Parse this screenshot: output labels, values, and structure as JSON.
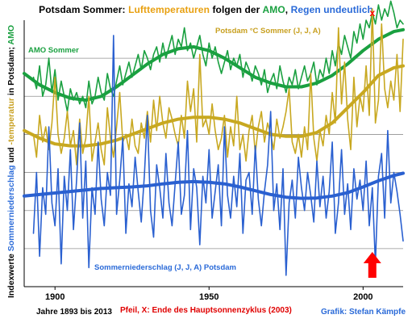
{
  "title_segments": [
    {
      "text": "Potsdam Sommer: ",
      "color": "#000000"
    },
    {
      "text": "Lufttemperaturen",
      "color": "#e8a010"
    },
    {
      "text": " folgen der ",
      "color": "#000000"
    },
    {
      "text": "AMO",
      "color": "#1aa040"
    },
    {
      "text": ", ",
      "color": "#000000"
    },
    {
      "text": "Regen undeutlich",
      "color": "#2a6ad8"
    }
  ],
  "ylabel_segments": [
    {
      "text": "Indexwerte ",
      "color": "#000000"
    },
    {
      "text": "Sommerniederschlag",
      "color": "#2a6ad8"
    },
    {
      "text": " und ",
      "color": "#000000"
    },
    {
      "text": "-temperatur",
      "color": "#c8a020"
    },
    {
      "text": " in Potsdam; ",
      "color": "#000000"
    },
    {
      "text": "AMO",
      "color": "#1aa040"
    }
  ],
  "footer": {
    "years": "Jahre 1893 bis 2013",
    "note": "Pfeil, X:  Ende  des Hauptsonnenzyklus  (2003)",
    "credit": "Grafik: Stefan Kämpfe"
  },
  "colors": {
    "amo": "#1aa040",
    "temperature": "#c8a820",
    "precipitation": "#2a60d0",
    "arrow": "#ff0000",
    "marker": "#ff0000",
    "note": "#e00000",
    "credit": "#2a6ad8",
    "grid": "#909090"
  },
  "chart_data": {
    "type": "line",
    "xlim": [
      1890,
      2013
    ],
    "ylim": [
      0,
      7
    ],
    "xticks": [
      1900,
      1950,
      2000
    ],
    "grid": true,
    "series": [
      {
        "name": "AMO Sommer",
        "style": "raw",
        "x": [
          1893,
          1894,
          1895,
          1896,
          1897,
          1898,
          1899,
          1900,
          1901,
          1902,
          1903,
          1904,
          1905,
          1906,
          1907,
          1908,
          1909,
          1910,
          1911,
          1912,
          1913,
          1914,
          1915,
          1916,
          1917,
          1918,
          1919,
          1920,
          1921,
          1922,
          1923,
          1924,
          1925,
          1926,
          1927,
          1928,
          1929,
          1930,
          1931,
          1932,
          1933,
          1934,
          1935,
          1936,
          1937,
          1938,
          1939,
          1940,
          1941,
          1942,
          1943,
          1944,
          1945,
          1946,
          1947,
          1948,
          1949,
          1950,
          1951,
          1952,
          1953,
          1954,
          1955,
          1956,
          1957,
          1958,
          1959,
          1960,
          1961,
          1962,
          1963,
          1964,
          1965,
          1966,
          1967,
          1968,
          1969,
          1970,
          1971,
          1972,
          1973,
          1974,
          1975,
          1976,
          1977,
          1978,
          1979,
          1980,
          1981,
          1982,
          1983,
          1984,
          1985,
          1986,
          1987,
          1988,
          1989,
          1990,
          1991,
          1992,
          1993,
          1994,
          1995,
          1996,
          1997,
          1998,
          1999,
          2000,
          2001,
          2002,
          2003,
          2004,
          2005,
          2006,
          2007,
          2008,
          2009,
          2010,
          2011,
          2012,
          2013
        ],
        "y": [
          5.5,
          5.2,
          5.8,
          5.0,
          5.3,
          6.0,
          5.1,
          5.7,
          4.9,
          5.4,
          5.0,
          4.6,
          5.2,
          4.9,
          5.1,
          4.8,
          5.0,
          4.7,
          5.4,
          4.8,
          5.0,
          5.5,
          5.1,
          4.9,
          5.6,
          5.2,
          5.0,
          5.4,
          5.8,
          5.3,
          5.6,
          5.9,
          5.5,
          5.8,
          6.1,
          5.7,
          6.2,
          6.0,
          5.7,
          6.1,
          6.3,
          5.9,
          6.4,
          6.0,
          6.3,
          6.6,
          6.1,
          6.5,
          6.3,
          6.8,
          6.2,
          6.4,
          6.0,
          6.3,
          6.6,
          6.1,
          5.8,
          6.4,
          6.0,
          6.3,
          5.9,
          5.6,
          5.9,
          6.2,
          5.7,
          6.0,
          5.8,
          6.1,
          5.5,
          5.9,
          5.7,
          5.4,
          5.8,
          5.6,
          5.3,
          5.7,
          5.1,
          5.4,
          5.6,
          5.2,
          5.8,
          5.4,
          5.1,
          5.5,
          5.3,
          5.7,
          5.2,
          5.5,
          5.8,
          5.4,
          5.6,
          5.9,
          5.3,
          5.7,
          5.5,
          6.0,
          5.6,
          6.2,
          5.8,
          6.4,
          6.1,
          6.6,
          6.3,
          6.0,
          6.7,
          6.4,
          6.9,
          6.5,
          7.0,
          6.8,
          7.2,
          6.9,
          7.4,
          7.0,
          7.3,
          7.1,
          7.5,
          7.2,
          6.8,
          7.0,
          6.9
        ]
      },
      {
        "name": "AMO Sommer",
        "style": "smooth",
        "x": [
          1890,
          1895,
          1900,
          1905,
          1910,
          1915,
          1920,
          1925,
          1930,
          1935,
          1940,
          1945,
          1950,
          1955,
          1960,
          1965,
          1970,
          1975,
          1980,
          1985,
          1990,
          1995,
          2000,
          2005,
          2010,
          2013
        ],
        "y": [
          5.6,
          5.3,
          5.1,
          4.95,
          4.9,
          5.0,
          5.25,
          5.55,
          5.85,
          6.1,
          6.25,
          6.3,
          6.2,
          6.0,
          5.75,
          5.5,
          5.35,
          5.25,
          5.25,
          5.35,
          5.55,
          5.85,
          6.2,
          6.5,
          6.7,
          6.75
        ]
      },
      {
        "name": "Potsdam  °C Sommer (J, J, A)",
        "style": "raw",
        "x": [
          1893,
          1894,
          1895,
          1896,
          1897,
          1898,
          1899,
          1900,
          1901,
          1902,
          1903,
          1904,
          1905,
          1906,
          1907,
          1908,
          1909,
          1910,
          1911,
          1912,
          1913,
          1914,
          1915,
          1916,
          1917,
          1918,
          1919,
          1920,
          1921,
          1922,
          1923,
          1924,
          1925,
          1926,
          1927,
          1928,
          1929,
          1930,
          1931,
          1932,
          1933,
          1934,
          1935,
          1936,
          1937,
          1938,
          1939,
          1940,
          1941,
          1942,
          1943,
          1944,
          1945,
          1946,
          1947,
          1948,
          1949,
          1950,
          1951,
          1952,
          1953,
          1954,
          1955,
          1956,
          1957,
          1958,
          1959,
          1960,
          1961,
          1962,
          1963,
          1964,
          1965,
          1966,
          1967,
          1968,
          1969,
          1970,
          1971,
          1972,
          1973,
          1974,
          1975,
          1976,
          1977,
          1978,
          1979,
          1980,
          1981,
          1982,
          1983,
          1984,
          1985,
          1986,
          1987,
          1988,
          1989,
          1990,
          1991,
          1992,
          1993,
          1994,
          1995,
          1996,
          1997,
          1998,
          1999,
          2000,
          2001,
          2002,
          2003,
          2004,
          2005,
          2006,
          2007,
          2008,
          2009,
          2010,
          2011,
          2012,
          2013
        ],
        "y": [
          4.0,
          3.4,
          4.5,
          3.8,
          4.2,
          3.6,
          4.3,
          5.5,
          4.0,
          3.5,
          3.9,
          4.6,
          3.7,
          4.1,
          3.2,
          4.4,
          3.5,
          3.9,
          5.0,
          3.3,
          3.8,
          4.3,
          3.6,
          3.2,
          4.7,
          3.9,
          3.4,
          4.2,
          5.1,
          3.8,
          4.0,
          3.6,
          4.4,
          3.7,
          3.5,
          4.3,
          3.9,
          4.6,
          3.8,
          4.9,
          4.1,
          5.0,
          4.3,
          3.9,
          4.7,
          4.4,
          4.0,
          3.7,
          4.5,
          3.9,
          5.4,
          4.6,
          5.2,
          3.8,
          6.1,
          4.2,
          4.4,
          4.0,
          4.8,
          4.1,
          3.6,
          3.9,
          4.5,
          3.4,
          4.2,
          3.7,
          5.0,
          3.6,
          4.0,
          3.3,
          4.1,
          4.5,
          3.5,
          4.2,
          4.6,
          3.8,
          4.3,
          4.0,
          3.6,
          4.4,
          3.9,
          4.2,
          4.6,
          5.2,
          3.8,
          3.5,
          4.0,
          3.4,
          4.2,
          3.6,
          5.6,
          3.9,
          3.3,
          4.1,
          3.7,
          4.5,
          4.0,
          5.1,
          4.3,
          6.8,
          4.8,
          5.9,
          4.4,
          3.6,
          5.5,
          4.2,
          5.0,
          4.6,
          5.8,
          4.5,
          7.3,
          4.3,
          4.9,
          6.9,
          5.2,
          4.7,
          5.4,
          4.9,
          6.1,
          4.6,
          6.5
        ]
      },
      {
        "name": "Potsdam  °C Sommer (J, J, A)",
        "style": "smooth",
        "x": [
          1890,
          1895,
          1900,
          1905,
          1910,
          1915,
          1920,
          1925,
          1930,
          1935,
          1940,
          1945,
          1950,
          1955,
          1960,
          1965,
          1970,
          1975,
          1980,
          1985,
          1990,
          1995,
          2000,
          2005,
          2010,
          2013
        ],
        "y": [
          4.1,
          3.9,
          3.75,
          3.7,
          3.7,
          3.75,
          3.85,
          4.0,
          4.15,
          4.3,
          4.4,
          4.45,
          4.45,
          4.4,
          4.3,
          4.15,
          4.0,
          3.95,
          3.95,
          4.05,
          4.3,
          4.7,
          5.1,
          5.55,
          5.75,
          5.8
        ]
      },
      {
        "name": "Sommerniederschlag (J, J, A) Potsdam",
        "style": "raw",
        "x": [
          1893,
          1894,
          1895,
          1896,
          1897,
          1898,
          1899,
          1900,
          1901,
          1902,
          1903,
          1904,
          1905,
          1906,
          1907,
          1908,
          1909,
          1910,
          1911,
          1912,
          1913,
          1914,
          1915,
          1916,
          1917,
          1918,
          1919,
          1920,
          1921,
          1922,
          1923,
          1924,
          1925,
          1926,
          1927,
          1928,
          1929,
          1930,
          1931,
          1932,
          1933,
          1934,
          1935,
          1936,
          1937,
          1938,
          1939,
          1940,
          1941,
          1942,
          1943,
          1944,
          1945,
          1946,
          1947,
          1948,
          1949,
          1950,
          1951,
          1952,
          1953,
          1954,
          1955,
          1956,
          1957,
          1958,
          1959,
          1960,
          1961,
          1962,
          1963,
          1964,
          1965,
          1966,
          1967,
          1968,
          1969,
          1970,
          1971,
          1972,
          1973,
          1974,
          1975,
          1976,
          1977,
          1978,
          1979,
          1980,
          1981,
          1982,
          1983,
          1984,
          1985,
          1986,
          1987,
          1988,
          1989,
          1990,
          1991,
          1992,
          1993,
          1994,
          1995,
          1996,
          1997,
          1998,
          1999,
          2000,
          2001,
          2002,
          2003,
          2004,
          2005,
          2006,
          2007,
          2008,
          2009,
          2010,
          2011,
          2012,
          2013
        ],
        "y": [
          1.4,
          3.0,
          0.8,
          2.6,
          1.9,
          4.2,
          2.2,
          1.6,
          3.1,
          0.6,
          2.9,
          2.0,
          3.6,
          1.5,
          2.8,
          4.3,
          1.8,
          3.3,
          0.5,
          2.6,
          1.9,
          3.8,
          2.3,
          1.6,
          3.0,
          2.4,
          6.6,
          1.9,
          2.8,
          3.9,
          1.4,
          2.7,
          2.1,
          3.4,
          2.5,
          1.7,
          2.9,
          4.5,
          2.0,
          1.3,
          3.2,
          2.6,
          1.8,
          3.5,
          2.2,
          1.6,
          2.7,
          3.8,
          1.9,
          2.4,
          4.1,
          1.5,
          3.1,
          2.6,
          1.1,
          2.9,
          2.2,
          3.6,
          1.8,
          2.5,
          3.2,
          1.6,
          4.2,
          2.4,
          1.8,
          2.9,
          2.1,
          3.5,
          1.4,
          2.8,
          3.0,
          1.9,
          3.7,
          2.3,
          1.6,
          2.5,
          3.2,
          4.6,
          2.0,
          2.7,
          1.5,
          3.1,
          0.3,
          2.2,
          2.8,
          1.8,
          3.4,
          2.6,
          2.0,
          3.0,
          2.4,
          1.7,
          3.3,
          2.1,
          2.9,
          1.8,
          2.5,
          3.8,
          1.4,
          2.2,
          3.6,
          1.9,
          2.7,
          1.5,
          3.1,
          2.3,
          2.8,
          2.0,
          3.3,
          1.6,
          2.6,
          0.6,
          2.9,
          3.5,
          1.8,
          4.1,
          2.2,
          3.0,
          2.5,
          1.9,
          1.2
        ]
      },
      {
        "name": "Sommerniederschlag (J, J, A) Potsdam",
        "style": "smooth",
        "x": [
          1890,
          1895,
          1900,
          1905,
          1910,
          1915,
          1920,
          1925,
          1930,
          1935,
          1940,
          1945,
          1950,
          1955,
          1960,
          1965,
          1970,
          1975,
          1980,
          1985,
          1990,
          1995,
          2000,
          2005,
          2010,
          2013
        ],
        "y": [
          2.38,
          2.42,
          2.46,
          2.5,
          2.54,
          2.58,
          2.6,
          2.62,
          2.65,
          2.7,
          2.74,
          2.76,
          2.74,
          2.7,
          2.62,
          2.52,
          2.42,
          2.35,
          2.32,
          2.33,
          2.38,
          2.47,
          2.62,
          2.78,
          2.92,
          2.98
        ]
      }
    ],
    "annotations": [
      {
        "text": "AMO Sommer",
        "color": "#1aa040"
      },
      {
        "text": "Potsdam  °C Sommer (J, J, A)",
        "color": "#c8a020"
      },
      {
        "text": "Sommerniederschlag (J, J, A) Potsdam",
        "color": "#2a6ad8"
      },
      {
        "text": "x",
        "color": "#ff0000",
        "year": 2003
      }
    ],
    "arrow_year": 2003
  }
}
